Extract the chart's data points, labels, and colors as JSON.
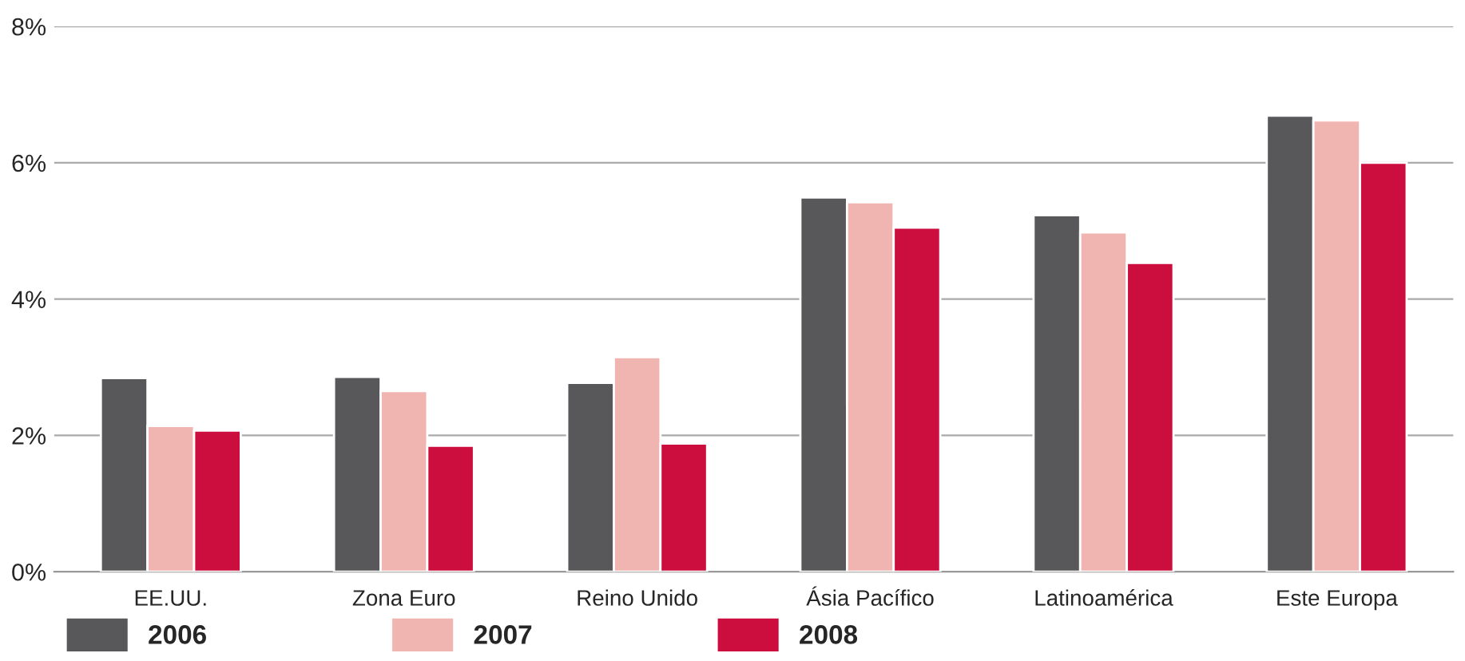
{
  "chart_data": {
    "type": "bar",
    "categories": [
      "EE.UU.",
      "Zona Euro",
      "Reino Unido",
      "Ásia Pacífico",
      "Latinoamérica",
      "Este Europa"
    ],
    "series": [
      {
        "name": "2006",
        "color": "#58585a",
        "values": [
          2.84,
          2.86,
          2.77,
          5.49,
          5.23,
          6.69
        ]
      },
      {
        "name": "2007",
        "color": "#f0b5b0",
        "values": [
          2.14,
          2.65,
          3.15,
          5.42,
          4.98,
          6.62
        ]
      },
      {
        "name": "2008",
        "color": "#cc0e3f",
        "values": [
          2.07,
          1.85,
          1.88,
          5.05,
          4.53,
          6.0
        ]
      }
    ],
    "ylim": [
      0,
      8
    ],
    "yticks": [
      {
        "value": 0,
        "label": "0%"
      },
      {
        "value": 2,
        "label": "2%"
      },
      {
        "value": 4,
        "label": "4%"
      },
      {
        "value": 6,
        "label": "6%"
      },
      {
        "value": 8,
        "label": "8%"
      }
    ],
    "grid": "y",
    "legend": "bottom left"
  }
}
